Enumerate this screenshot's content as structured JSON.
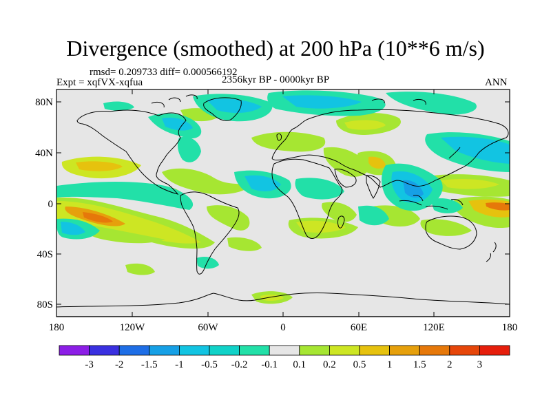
{
  "title": "Divergence (smoothed) at 200 hPa (10**6 m/s)",
  "stats": "rmsd= 0.209733 diff= 0.000566192",
  "experiment": "Expt = xqfVX-xqfua",
  "period": "2356kyr BP - 0000kyr BP",
  "season": "ANN",
  "lat_ticks": [
    "80N",
    "40N",
    "0",
    "40S",
    "80S"
  ],
  "lon_ticks": [
    "180",
    "120W",
    "60W",
    "0",
    "60E",
    "120E",
    "180"
  ],
  "colorbar": {
    "labels": [
      "-3",
      "-2",
      "-1.5",
      "-1",
      "-0.5",
      "-0.2",
      "-0.1",
      "0.1",
      "0.2",
      "0.5",
      "1",
      "1.5",
      "2",
      "3"
    ],
    "colors": [
      "#8c1ee6",
      "#3a30e0",
      "#1e6ee6",
      "#16a0e6",
      "#12c4e2",
      "#10d2c8",
      "#22e0a8",
      "#e6e6e6",
      "#a6e632",
      "#cde623",
      "#e6c20e",
      "#e6a00c",
      "#e6780a",
      "#e6460a",
      "#e61e0c"
    ]
  }
}
